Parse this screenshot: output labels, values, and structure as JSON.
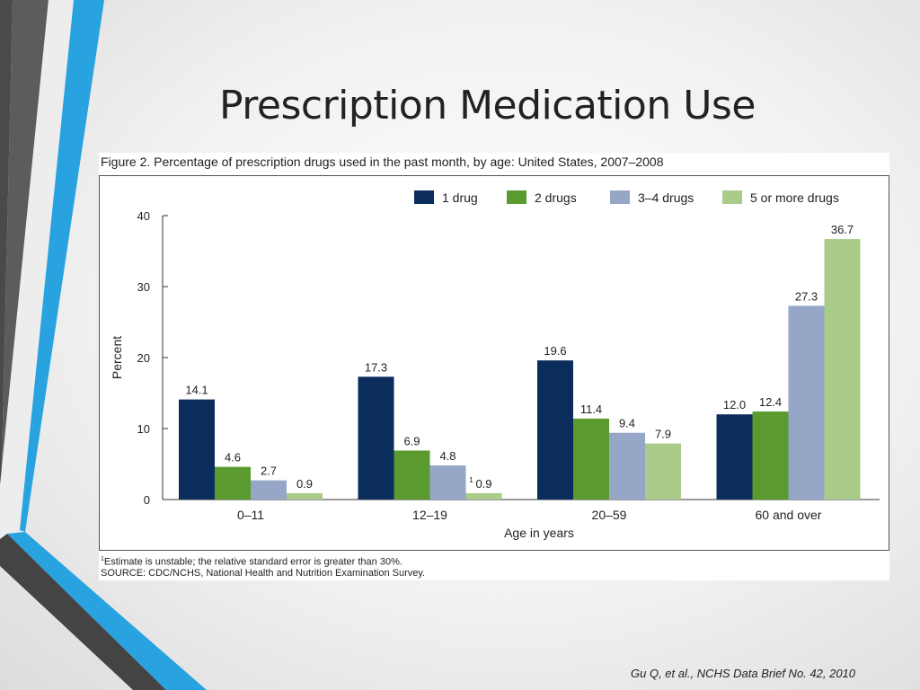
{
  "slide": {
    "title": "Prescription Medication Use",
    "citation": "Gu Q, et al., NCHS Data Brief No. 42, 2010",
    "colors": {
      "blue_accent": "#29a3e0",
      "dark_accent": "#444444"
    }
  },
  "figure": {
    "title": "Figure 2. Percentage of prescription drugs used in the past month, by age: United States, 2007–2008",
    "footnote_marker": "1",
    "footnote_text": "Estimate is unstable; the relative standard error is greater than 30%.",
    "source": "SOURCE: CDC/NCHS, National Health and Nutrition Examination Survey."
  },
  "chart_data": {
    "type": "bar",
    "title": "Figure 2. Percentage of prescription drugs used in the past month, by age: United States, 2007–2008",
    "xlabel": "Age in years",
    "ylabel": "Percent",
    "ylim": [
      0,
      40
    ],
    "yticks": [
      0,
      10,
      20,
      30,
      40
    ],
    "grid": false,
    "legend_position": "top-right",
    "categories": [
      "0–11",
      "12–19",
      "20–59",
      "60 and over"
    ],
    "series": [
      {
        "name": "1 drug",
        "color": "#0b2d5c",
        "values": [
          14.1,
          17.3,
          19.6,
          12.0
        ],
        "labels": [
          "14.1",
          "17.3",
          "19.6",
          "12.0"
        ]
      },
      {
        "name": "2 drugs",
        "color": "#5a9a2f",
        "values": [
          4.6,
          6.9,
          11.4,
          12.4
        ],
        "labels": [
          "4.6",
          "6.9",
          "11.4",
          "12.4"
        ]
      },
      {
        "name": "3–4 drugs",
        "color": "#96a6c6",
        "values": [
          2.7,
          4.8,
          9.4,
          27.3
        ],
        "labels": [
          "2.7",
          "4.8",
          "9.4",
          "27.3"
        ]
      },
      {
        "name": "5 or more drugs",
        "color": "#a9cc8a",
        "values": [
          0.9,
          0.9,
          7.9,
          36.7
        ],
        "labels": [
          "0.9",
          "0.9",
          "7.9",
          "36.7"
        ],
        "unstable": [
          false,
          true,
          false,
          false
        ]
      }
    ]
  }
}
